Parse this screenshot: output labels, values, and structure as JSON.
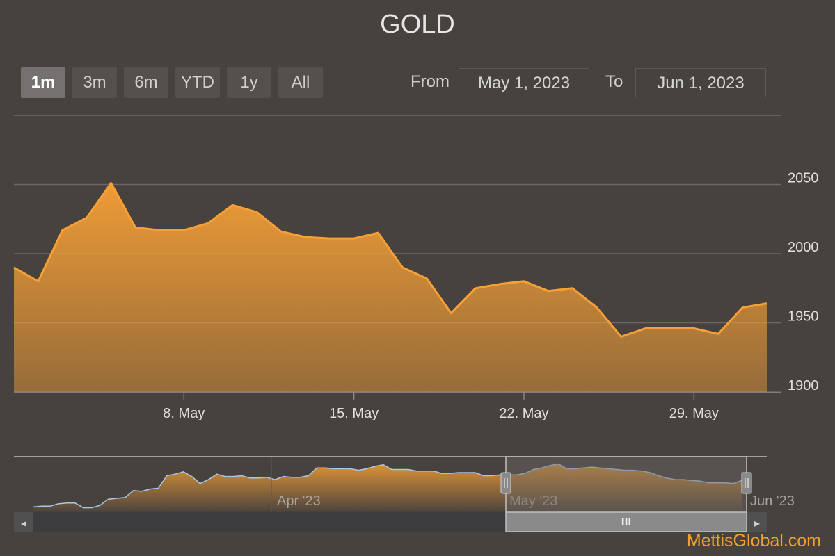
{
  "title": "GOLD",
  "range_selector": {
    "buttons": [
      {
        "label": "1m",
        "active": true
      },
      {
        "label": "3m",
        "active": false
      },
      {
        "label": "6m",
        "active": false
      },
      {
        "label": "YTD",
        "active": false
      },
      {
        "label": "1y",
        "active": false
      },
      {
        "label": "All",
        "active": false
      }
    ],
    "from_label": "From",
    "from_value": "May 1, 2023",
    "to_label": "To",
    "to_value": "Jun 1, 2023"
  },
  "colors": {
    "background": "#47423e",
    "series": "#f7a035",
    "grid": "#6c6764",
    "navigator_line": "#a8c8e8",
    "navigator_mask": "#6b6764",
    "scrollbar_track": "#3c3c3e",
    "scrollbar_thumb": "#8a8a8a",
    "watermark": "#f0a030"
  },
  "chart_data": {
    "type": "area",
    "title": "GOLD",
    "x_range": [
      "2023-05-01",
      "2023-06-01"
    ],
    "ylim": [
      1900,
      2100
    ],
    "y_ticks": [
      1900,
      1950,
      2000,
      2050
    ],
    "x_ticks": [
      "8. May",
      "15. May",
      "22. May",
      "29. May"
    ],
    "grid": true,
    "series": [
      {
        "x": [
          "2023-05-01",
          "2023-05-02",
          "2023-05-03",
          "2023-05-04",
          "2023-05-05",
          "2023-05-06",
          "2023-05-07",
          "2023-05-08",
          "2023-05-09",
          "2023-05-10",
          "2023-05-11",
          "2023-05-12",
          "2023-05-13",
          "2023-05-14",
          "2023-05-15",
          "2023-05-16",
          "2023-05-17",
          "2023-05-18",
          "2023-05-19",
          "2023-05-20",
          "2023-05-21",
          "2023-05-22",
          "2023-05-23",
          "2023-05-24",
          "2023-05-25",
          "2023-05-26",
          "2023-05-27",
          "2023-05-28",
          "2023-05-29",
          "2023-05-30",
          "2023-05-31",
          "2023-06-01"
        ],
        "values": [
          1990,
          1980,
          2017,
          2026,
          2051,
          2019,
          2017,
          2017,
          2022,
          2035,
          2030,
          2016,
          2012,
          2011,
          2011,
          2015,
          1990,
          1982,
          1957,
          1975,
          1978,
          1980,
          1973,
          1975,
          1961,
          1940,
          1946,
          1946,
          1946,
          1942,
          1961,
          1964
        ]
      }
    ]
  },
  "navigator": {
    "labels": [
      "Apr '23",
      "May '23",
      "Jun '23"
    ],
    "selected_range": [
      "May '23",
      "Jun '23"
    ],
    "values": [
      1905,
      1906,
      1906,
      1909,
      1910,
      1910,
      1904,
      1904,
      1907,
      1915,
      1916,
      1917,
      1926,
      1925,
      1928,
      1929,
      1945,
      1947,
      1950,
      1944,
      1935,
      1940,
      1947,
      1944,
      1944,
      1945,
      1942,
      1942,
      1943,
      1940,
      1944,
      1943,
      1943,
      1945,
      1955,
      1955,
      1954,
      1954,
      1954,
      1952,
      1954,
      1957,
      1959,
      1953,
      1953,
      1953,
      1951,
      1951,
      1951,
      1948,
      1948,
      1949,
      1949,
      1949,
      1945,
      1945,
      1946,
      1946,
      1946,
      1948,
      1953,
      1955,
      1958,
      1960,
      1954,
      1954,
      1955,
      1956,
      1955,
      1954,
      1953,
      1952,
      1952,
      1951,
      1949,
      1945,
      1942,
      1940,
      1940,
      1939,
      1938,
      1936,
      1936,
      1936,
      1935,
      1939
    ]
  },
  "scrollbar": {
    "left_arrow": "◂",
    "right_arrow": "▸",
    "grip": "III"
  },
  "watermark": "MettisGlobal.com"
}
